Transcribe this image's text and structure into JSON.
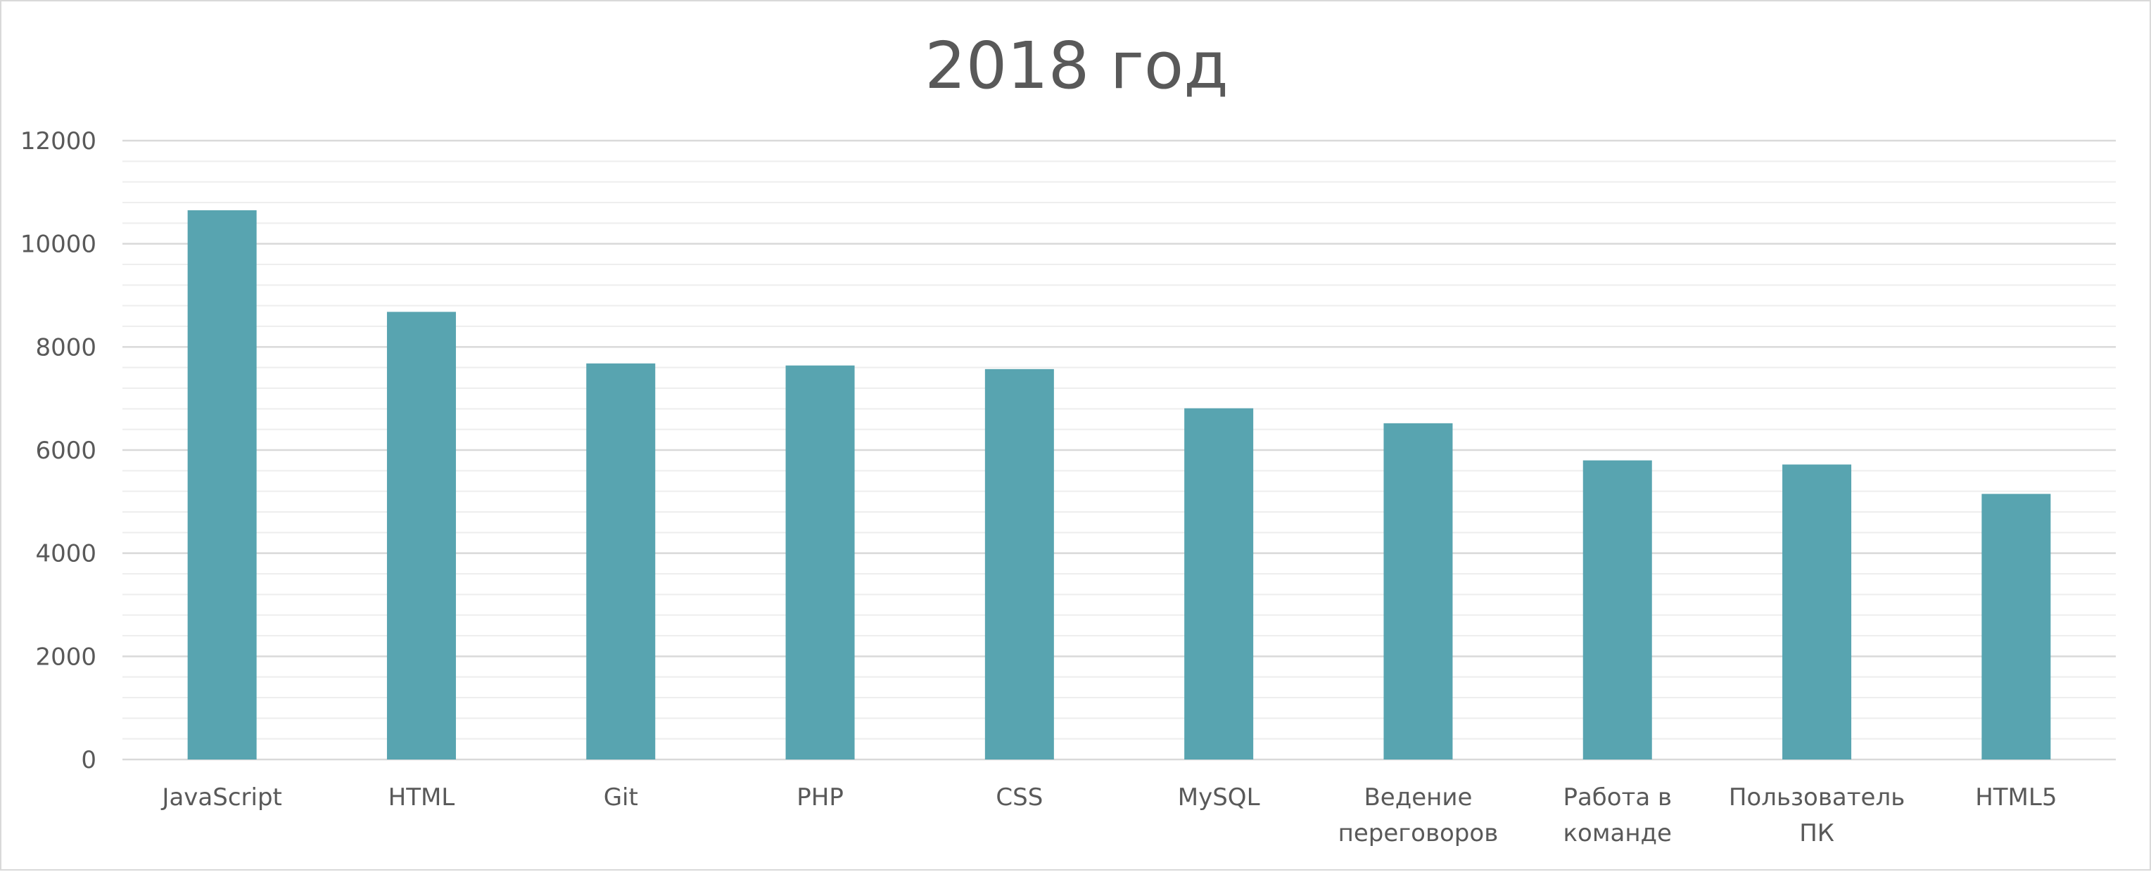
{
  "chart_data": {
    "type": "bar",
    "title": "2018 год",
    "xlabel": "",
    "ylabel": "",
    "categories": [
      [
        "JavaScript"
      ],
      [
        "HTML"
      ],
      [
        "Git"
      ],
      [
        "PHP"
      ],
      [
        "CSS"
      ],
      [
        "MySQL"
      ],
      [
        "Ведение",
        "переговоров"
      ],
      [
        "Работа в",
        "команде"
      ],
      [
        "Пользователь",
        "ПК"
      ],
      [
        "HTML5"
      ]
    ],
    "values": [
      10650,
      8680,
      7680,
      7640,
      7570,
      6810,
      6520,
      5800,
      5720,
      5150
    ],
    "ylim": [
      0,
      12000
    ],
    "yticks": [
      "0",
      "2000",
      "4000",
      "6000",
      "8000",
      "10000",
      "12000"
    ],
    "ytick_values": [
      0,
      2000,
      4000,
      6000,
      8000,
      10000,
      12000
    ],
    "grid": true,
    "minor_grid": true,
    "legend": "none",
    "colors": {
      "bar": "#58a4b0",
      "major_grid": "#d9d9d9",
      "minor_grid": "#eeeeee",
      "text": "#595959",
      "axis": "#d9d9d9"
    }
  }
}
